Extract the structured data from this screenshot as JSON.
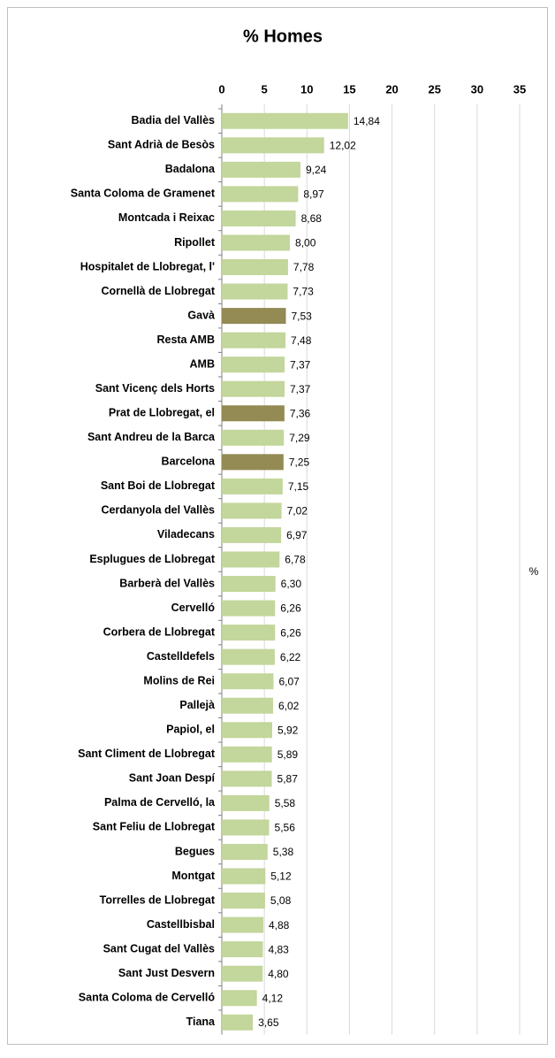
{
  "chart_data": {
    "type": "hbar",
    "title": "% Homes",
    "y_label": "%",
    "categories": [
      "Badia del Vallès",
      "Sant Adrià de Besòs",
      "Badalona",
      "Santa Coloma de Gramenet",
      "Montcada i Reixac",
      "Ripollet",
      "Hospitalet de Llobregat, l'",
      "Cornellà de Llobregat",
      "Gavà",
      "Resta AMB",
      "AMB",
      "Sant Vicenç dels Horts",
      "Prat de Llobregat, el",
      "Sant Andreu de la Barca",
      "Barcelona",
      "Sant Boi de Llobregat",
      "Cerdanyola del Vallès",
      "Viladecans",
      "Esplugues de Llobregat",
      "Barberà del Vallès",
      "Cervelló",
      "Corbera de Llobregat",
      "Castelldefels",
      "Molins de Rei",
      "Pallejà",
      "Papiol, el",
      "Sant Climent de Llobregat",
      "Sant Joan Despí",
      "Palma de Cervelló, la",
      "Sant Feliu de Llobregat",
      "Begues",
      "Montgat",
      "Torrelles de Llobregat",
      "Castellbisbal",
      "Sant Cugat del Vallès",
      "Sant Just Desvern",
      "Santa Coloma de Cervelló",
      "Tiana"
    ],
    "values": [
      14.84,
      12.02,
      9.24,
      8.97,
      8.68,
      8.0,
      7.78,
      7.73,
      7.53,
      7.48,
      7.37,
      7.37,
      7.36,
      7.29,
      7.25,
      7.15,
      7.02,
      6.97,
      6.78,
      6.3,
      6.26,
      6.26,
      6.22,
      6.07,
      6.02,
      5.92,
      5.89,
      5.87,
      5.58,
      5.56,
      5.38,
      5.12,
      5.08,
      4.88,
      4.83,
      4.8,
      4.12,
      3.65
    ],
    "value_labels": [
      "14,84",
      "12,02",
      "9,24",
      "8,97",
      "8,68",
      "8,00",
      "7,78",
      "7,73",
      "7,53",
      "7,48",
      "7,37",
      "7,37",
      "7,36",
      "7,29",
      "7,25",
      "7,15",
      "7,02",
      "6,97",
      "6,78",
      "6,30",
      "6,26",
      "6,26",
      "6,22",
      "6,07",
      "6,02",
      "5,92",
      "5,89",
      "5,87",
      "5,58",
      "5,56",
      "5,38",
      "5,12",
      "5,08",
      "4,88",
      "4,83",
      "4,80",
      "4,12",
      "3,65"
    ],
    "colors": [
      "#c3d69b",
      "#c3d69b",
      "#c3d69b",
      "#c3d69b",
      "#c3d69b",
      "#c3d69b",
      "#c3d69b",
      "#c3d69b",
      "#948a54",
      "#c3d69b",
      "#c3d69b",
      "#c3d69b",
      "#948a54",
      "#c3d69b",
      "#948a54",
      "#c3d69b",
      "#c3d69b",
      "#c3d69b",
      "#c3d69b",
      "#c3d69b",
      "#c3d69b",
      "#c3d69b",
      "#c3d69b",
      "#c3d69b",
      "#c3d69b",
      "#c3d69b",
      "#c3d69b",
      "#c3d69b",
      "#c3d69b",
      "#c3d69b",
      "#c3d69b",
      "#c3d69b",
      "#c3d69b",
      "#c3d69b",
      "#c3d69b",
      "#c3d69b",
      "#c3d69b",
      "#c3d69b"
    ],
    "xlim": [
      0,
      35
    ],
    "xticks": [
      0,
      5,
      10,
      15,
      20,
      25,
      30,
      35
    ],
    "grid": true
  }
}
